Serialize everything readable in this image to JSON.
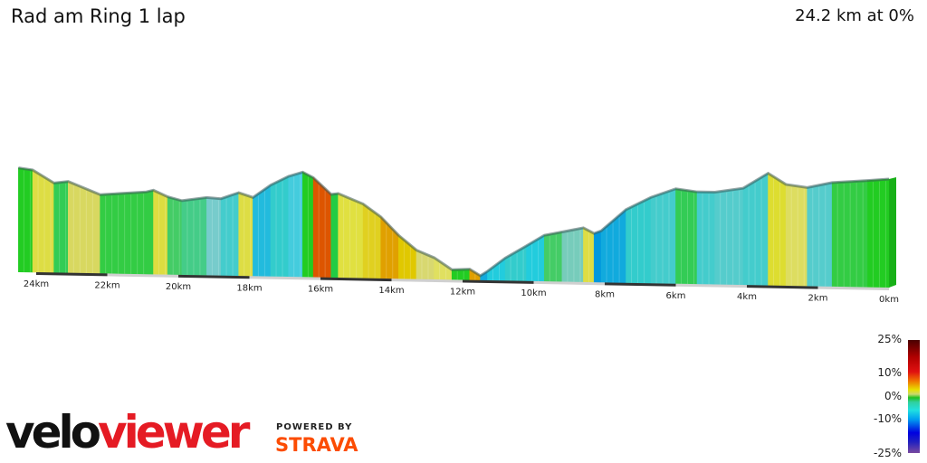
{
  "title": "Rad am Ring 1 lap",
  "summary": "24.2 km at 0%",
  "chart_data": {
    "type": "area",
    "title": "Rad am Ring 1 lap",
    "xlabel": "",
    "ylabel": "",
    "x_direction": "reversed",
    "xlim": [
      0,
      24.2
    ],
    "x_tick_labels": [
      "24km",
      "22km",
      "20km",
      "18km",
      "16km",
      "14km",
      "12km",
      "10km",
      "8km",
      "6km",
      "4km",
      "2km",
      "0km"
    ],
    "profile_km": [
      24.5,
      24.1,
      23.5,
      23.1,
      22.2,
      20.9,
      20.7,
      20.3,
      19.9,
      19.2,
      18.8,
      18.3,
      17.9,
      17.4,
      16.9,
      16.5,
      16.2,
      15.7,
      15.5,
      14.8,
      14.3,
      13.8,
      13.3,
      12.8,
      12.3,
      11.8,
      11.5,
      11.3,
      10.8,
      10.2,
      9.7,
      9.2,
      8.6,
      8.3,
      8.1,
      7.4,
      6.7,
      6.0,
      5.4,
      4.9,
      4.1,
      3.4,
      2.9,
      2.3,
      1.6,
      0.6,
      0
    ],
    "relative_elevation": [
      115,
      113,
      99,
      101,
      87,
      91,
      93,
      86,
      82,
      86,
      85,
      92,
      87,
      101,
      111,
      116,
      110,
      92,
      93,
      82,
      68,
      48,
      32,
      24,
      11,
      12,
      5,
      10,
      25,
      39,
      51,
      55,
      60,
      54,
      57,
      81,
      95,
      105,
      102,
      102,
      107,
      124,
      112,
      109,
      115,
      118,
      120
    ],
    "segment_colors": [
      "#22cc22",
      "#dddd44",
      "#33cc55",
      "#d8d860",
      "#33cc44",
      "#33cc44",
      "#dddd40",
      "#44cc66",
      "#44cc88",
      "#77cccc",
      "#44cccc",
      "#dddd44",
      "#22bbdd",
      "#33cccc",
      "#44ccdd",
      "#22cc22",
      "#dd5500",
      "#22cc44",
      "#e0e040",
      "#e0d020",
      "#e0a000",
      "#e0c800",
      "#d8d870",
      "#e0e060",
      "#22cc22",
      "#e0a000",
      "#11aadd",
      "#22ccdd",
      "#33cccc",
      "#22ccdd",
      "#44cc66",
      "#77ccbb",
      "#dddd44",
      "#0099dd",
      "#11aadd",
      "#33cccc",
      "#44cccc",
      "#33cc55",
      "#44cccc",
      "#55cccc",
      "#44cccc",
      "#dddd30",
      "#dddd60",
      "#55cccc",
      "#33cc44",
      "#22cc22"
    ],
    "legend": {
      "title": "",
      "labels": [
        "25%",
        "10%",
        "0%",
        "-10%",
        "-25%"
      ],
      "values": [
        25,
        10,
        0,
        -10,
        -25
      ]
    }
  },
  "branding": {
    "logo_part1": "velo",
    "logo_part2": "viewer",
    "powered_by": "POWERED BY",
    "strava": "STRAVA",
    "strava_color": "#fc4c02"
  }
}
